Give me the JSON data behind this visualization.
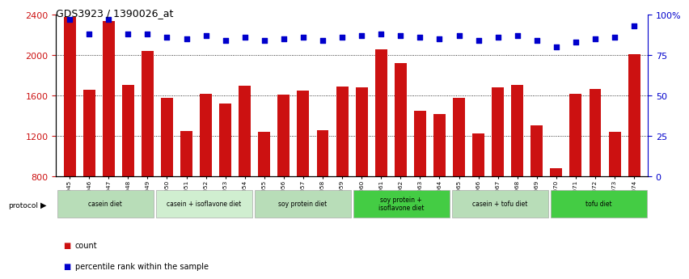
{
  "title": "GDS3923 / 1390026_at",
  "samples": [
    "GSM586045",
    "GSM586046",
    "GSM586047",
    "GSM586048",
    "GSM586049",
    "GSM586050",
    "GSM586051",
    "GSM586052",
    "GSM586053",
    "GSM586054",
    "GSM586055",
    "GSM586056",
    "GSM586057",
    "GSM586058",
    "GSM586059",
    "GSM586060",
    "GSM586061",
    "GSM586062",
    "GSM586063",
    "GSM586064",
    "GSM586065",
    "GSM586066",
    "GSM586067",
    "GSM586068",
    "GSM586069",
    "GSM586070",
    "GSM586071",
    "GSM586072",
    "GSM586073",
    "GSM586074"
  ],
  "counts": [
    2380,
    1660,
    2340,
    1710,
    2040,
    1580,
    1250,
    1620,
    1520,
    1700,
    1240,
    1610,
    1650,
    1260,
    1690,
    1680,
    2060,
    1920,
    1450,
    1420,
    1580,
    1230,
    1680,
    1710,
    1310,
    880,
    1620,
    1670,
    1240,
    2010
  ],
  "percentiles": [
    97,
    88,
    97,
    88,
    88,
    86,
    85,
    87,
    84,
    86,
    84,
    85,
    86,
    84,
    86,
    87,
    88,
    87,
    86,
    85,
    87,
    84,
    86,
    87,
    84,
    80,
    83,
    85,
    86,
    93
  ],
  "protocols": [
    {
      "label": "casein diet",
      "start": 0,
      "end": 5,
      "color": "#b8ddb8"
    },
    {
      "label": "casein + isoflavone diet",
      "start": 5,
      "end": 10,
      "color": "#d0eed0"
    },
    {
      "label": "soy protein diet",
      "start": 10,
      "end": 15,
      "color": "#b8ddb8"
    },
    {
      "label": "soy protein +\nisoflavone diet",
      "start": 15,
      "end": 20,
      "color": "#44cc44"
    },
    {
      "label": "casein + tofu diet",
      "start": 20,
      "end": 25,
      "color": "#b8ddb8"
    },
    {
      "label": "tofu diet",
      "start": 25,
      "end": 30,
      "color": "#44cc44"
    }
  ],
  "bar_color": "#cc1111",
  "dot_color": "#0000cc",
  "ylim_left": [
    800,
    2400
  ],
  "ylim_right": [
    0,
    100
  ],
  "yticks_left": [
    800,
    1200,
    1600,
    2000,
    2400
  ],
  "yticks_right": [
    0,
    25,
    50,
    75,
    100
  ],
  "ytick_right_labels": [
    "0",
    "25",
    "50",
    "75",
    "100%"
  ],
  "grid_lines": [
    1200,
    1600,
    2000
  ],
  "legend_count_label": "count",
  "legend_pct_label": "percentile rank within the sample",
  "background_color": "#ffffff"
}
